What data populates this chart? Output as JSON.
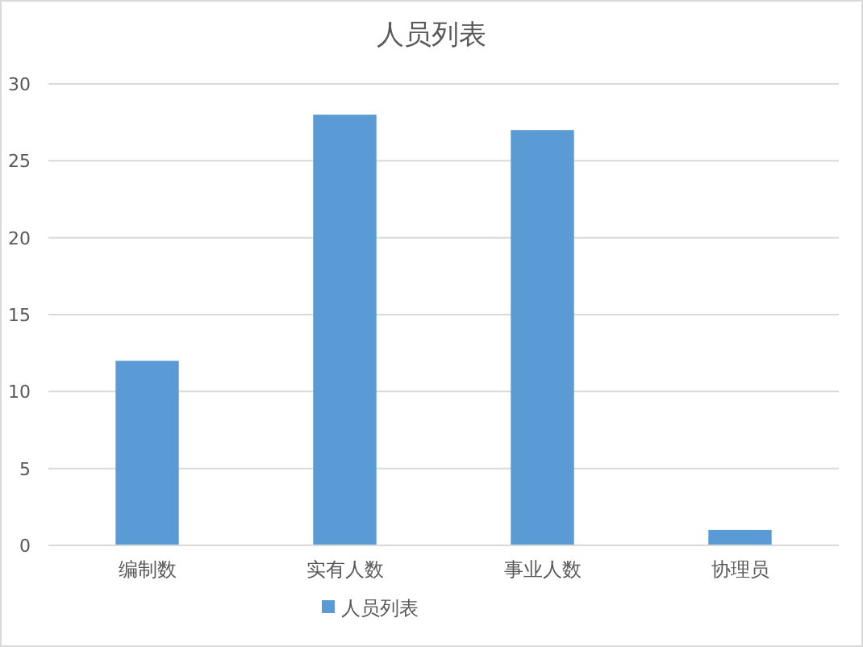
{
  "chart_data": {
    "type": "bar",
    "title": "人员列表",
    "categories": [
      "编制数",
      "实有人数",
      "事业人数",
      "协理员"
    ],
    "series": [
      {
        "name": "人员列表",
        "color": "#5b9bd5",
        "values": [
          12,
          28,
          27,
          1
        ]
      }
    ],
    "ylim": [
      0,
      30
    ],
    "yticks": [
      0,
      5,
      10,
      15,
      20,
      25,
      30
    ],
    "grid": "y",
    "legend": "bottom"
  }
}
